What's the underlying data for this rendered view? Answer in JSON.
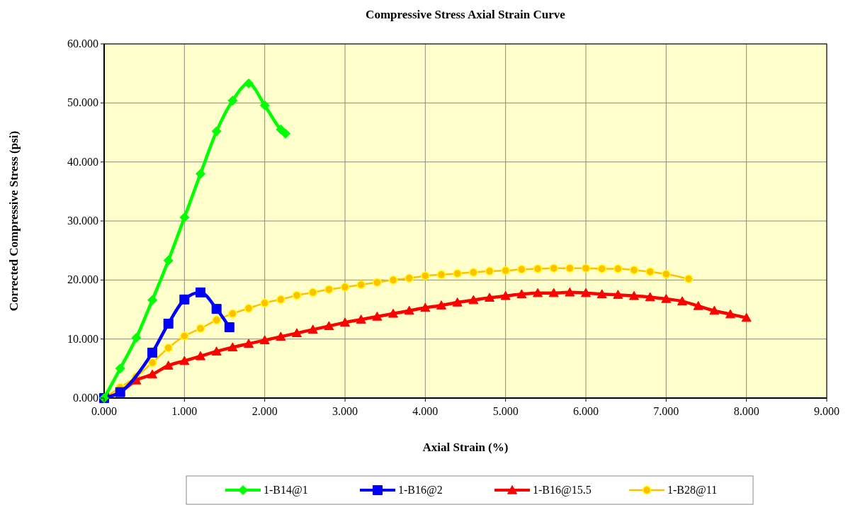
{
  "chart_data": {
    "type": "line",
    "title": "Compressive Stress Axial Strain Curve",
    "xlabel": "Axial Strain (%)",
    "ylabel": "Corrected Compressive Stress (psi)",
    "xlim": [
      0,
      9
    ],
    "ylim": [
      0,
      60
    ],
    "xticks": [
      {
        "value": 0,
        "label": "0.000"
      },
      {
        "value": 1,
        "label": "1.000"
      },
      {
        "value": 2,
        "label": "2.000"
      },
      {
        "value": 3,
        "label": "3.000"
      },
      {
        "value": 4,
        "label": "4.000"
      },
      {
        "value": 5,
        "label": "5.000"
      },
      {
        "value": 6,
        "label": "6.000"
      },
      {
        "value": 7,
        "label": "7.000"
      },
      {
        "value": 8,
        "label": "8.000"
      },
      {
        "value": 9,
        "label": "9.000"
      }
    ],
    "yticks": [
      {
        "value": 0,
        "label": "0.000"
      },
      {
        "value": 10,
        "label": "10.000"
      },
      {
        "value": 20,
        "label": "20.000"
      },
      {
        "value": 30,
        "label": "30.000"
      },
      {
        "value": 40,
        "label": "40.000"
      },
      {
        "value": 50,
        "label": "50.000"
      },
      {
        "value": 60,
        "label": "60.000"
      }
    ],
    "grid": true,
    "legend": "bottom",
    "series": [
      {
        "name": "1-B14@1",
        "color": "#00ff00",
        "marker": "diamond",
        "x": [
          0,
          0.2,
          0.4,
          0.6,
          0.8,
          1.0,
          1.2,
          1.4,
          1.6,
          1.8,
          2.0,
          2.2,
          2.26
        ],
        "values": [
          0,
          5,
          10.2,
          16.6,
          23.3,
          30.6,
          38,
          45.2,
          50.4,
          53.3,
          49.6,
          45.5,
          44.8
        ]
      },
      {
        "name": "1-B16@2",
        "color": "#0000ff",
        "marker": "square",
        "x": [
          0,
          0.2,
          0.4,
          0.6,
          0.8,
          1.0,
          1.2,
          1.4,
          1.56
        ],
        "values": [
          0,
          1,
          null,
          7.7,
          12.6,
          16.7,
          17.9,
          15.1,
          12
        ]
      },
      {
        "name": "1-B16@15.5",
        "color": "#ff0000",
        "marker": "triangle",
        "x": [
          0,
          0.2,
          0.4,
          0.6,
          0.8,
          1.0,
          1.2,
          1.4,
          1.6,
          1.8,
          2.0,
          2.2,
          2.4,
          2.6,
          2.8,
          3.0,
          3.2,
          3.4,
          3.6,
          3.8,
          4.0,
          4.2,
          4.4,
          4.6,
          4.8,
          5.0,
          5.2,
          5.4,
          5.6,
          5.8,
          6.0,
          6.2,
          6.4,
          6.6,
          6.8,
          7.0,
          7.2,
          7.4,
          7.6,
          7.8,
          8.0
        ],
        "values": [
          0,
          1.0,
          3.0,
          4.0,
          5.5,
          6.3,
          7.1,
          7.9,
          8.6,
          9.2,
          9.8,
          10.4,
          11.0,
          11.6,
          12.2,
          12.8,
          13.3,
          13.8,
          14.3,
          14.8,
          15.3,
          15.7,
          16.2,
          16.6,
          17.0,
          17.3,
          17.6,
          17.8,
          17.8,
          17.9,
          17.8,
          17.6,
          17.5,
          17.3,
          17.1,
          16.8,
          16.4,
          15.6,
          14.8,
          14.2,
          13.6
        ]
      },
      {
        "name": "1-B28@11",
        "color": "#ffc000",
        "marker": "circle",
        "x": [
          0,
          0.2,
          0.4,
          0.6,
          0.8,
          1.0,
          1.2,
          1.4,
          1.6,
          1.8,
          2.0,
          2.2,
          2.4,
          2.6,
          2.8,
          3.0,
          3.2,
          3.4,
          3.6,
          3.8,
          4.0,
          4.2,
          4.4,
          4.6,
          4.8,
          5.0,
          5.2,
          5.4,
          5.6,
          5.8,
          6.0,
          6.2,
          6.4,
          6.6,
          6.8,
          7.0,
          7.28
        ],
        "values": [
          0,
          1.8,
          3.6,
          6,
          8.5,
          10.5,
          11.8,
          13.2,
          14.3,
          15.2,
          16.1,
          16.7,
          17.4,
          17.9,
          18.4,
          18.8,
          19.2,
          19.6,
          20.0,
          20.3,
          20.7,
          20.9,
          21.1,
          21.3,
          21.5,
          21.6,
          21.8,
          21.9,
          22.0,
          22.0,
          22.0,
          21.9,
          21.9,
          21.7,
          21.4,
          21.0,
          20.2
        ]
      }
    ]
  }
}
